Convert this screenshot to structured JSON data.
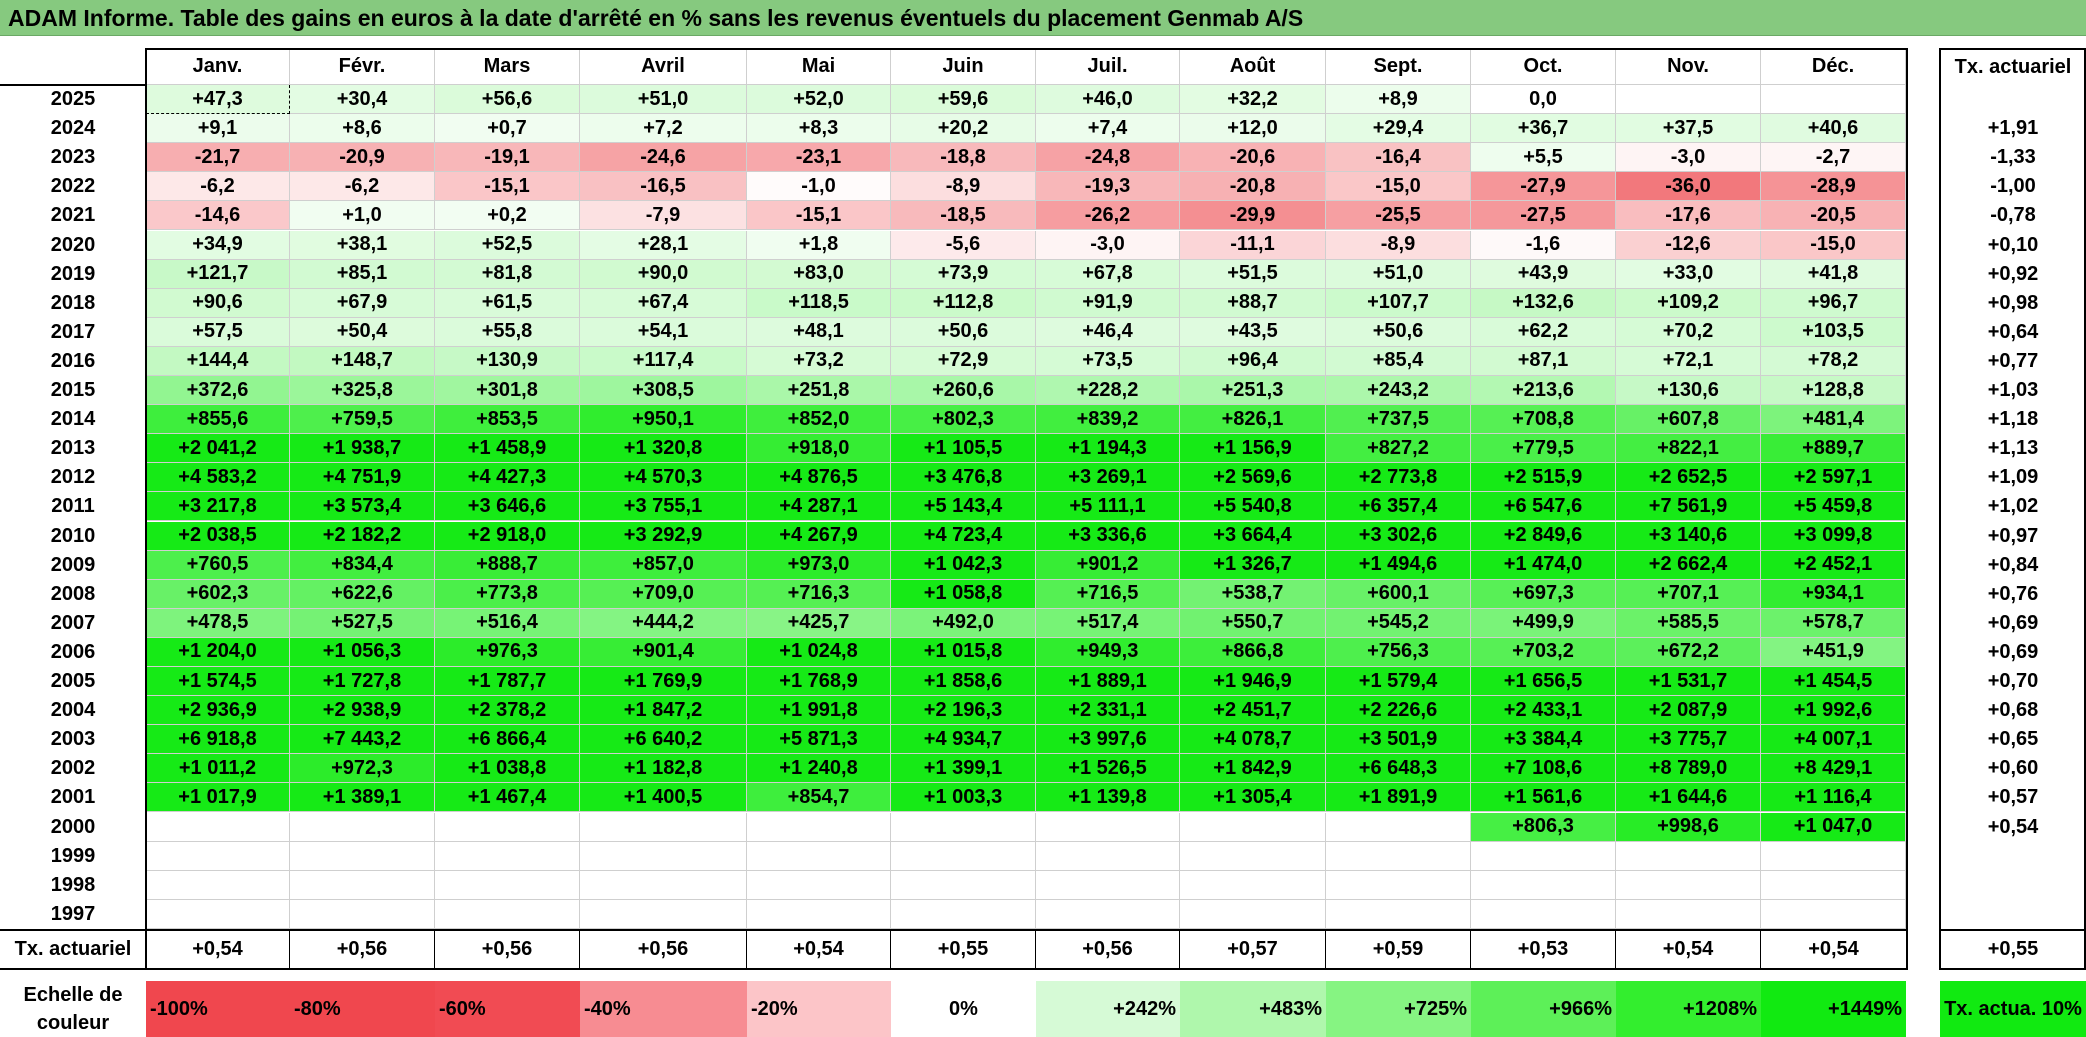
{
  "title": "ADAM Informe. Table des gains en euros à la date d'arrêté en % sans les revenus éventuels du placement Genmab A/S",
  "months": [
    "Janv.",
    "Févr.",
    "Mars",
    "Avril",
    "Mai",
    "Juin",
    "Juil.",
    "Août",
    "Sept.",
    "Oct.",
    "Nov.",
    "Déc."
  ],
  "rate_header": "Tx. actuariel",
  "rows": [
    {
      "year": "2025",
      "values": [
        "+47,3",
        "+30,4",
        "+56,6",
        "+51,0",
        "+52,0",
        "+59,6",
        "+46,0",
        "+32,2",
        "+8,9",
        "0,0",
        "",
        ""
      ],
      "rate": ""
    },
    {
      "year": "2024",
      "values": [
        "+9,1",
        "+8,6",
        "+0,7",
        "+7,2",
        "+8,3",
        "+20,2",
        "+7,4",
        "+12,0",
        "+29,4",
        "+36,7",
        "+37,5",
        "+40,6"
      ],
      "rate": "+1,91"
    },
    {
      "year": "2023",
      "values": [
        "-21,7",
        "-20,9",
        "-19,1",
        "-24,6",
        "-23,1",
        "-18,8",
        "-24,8",
        "-20,6",
        "-16,4",
        "+5,5",
        "-3,0",
        "-2,7"
      ],
      "rate": "-1,33"
    },
    {
      "year": "2022",
      "values": [
        "-6,2",
        "-6,2",
        "-15,1",
        "-16,5",
        "-1,0",
        "-8,9",
        "-19,3",
        "-20,8",
        "-15,0",
        "-27,9",
        "-36,0",
        "-28,9"
      ],
      "rate": "-1,00"
    },
    {
      "year": "2021",
      "values": [
        "-14,6",
        "+1,0",
        "+0,2",
        "-7,9",
        "-15,1",
        "-18,5",
        "-26,2",
        "-29,9",
        "-25,5",
        "-27,5",
        "-17,6",
        "-20,5"
      ],
      "rate": "-0,78"
    },
    {
      "year": "2020",
      "values": [
        "+34,9",
        "+38,1",
        "+52,5",
        "+28,1",
        "+1,8",
        "-5,6",
        "-3,0",
        "-11,1",
        "-8,9",
        "-1,6",
        "-12,6",
        "-15,0"
      ],
      "rate": "+0,10"
    },
    {
      "year": "2019",
      "values": [
        "+121,7",
        "+85,1",
        "+81,8",
        "+90,0",
        "+83,0",
        "+73,9",
        "+67,8",
        "+51,5",
        "+51,0",
        "+43,9",
        "+33,0",
        "+41,8"
      ],
      "rate": "+0,92"
    },
    {
      "year": "2018",
      "values": [
        "+90,6",
        "+67,9",
        "+61,5",
        "+67,4",
        "+118,5",
        "+112,8",
        "+91,9",
        "+88,7",
        "+107,7",
        "+132,6",
        "+109,2",
        "+96,7"
      ],
      "rate": "+0,98"
    },
    {
      "year": "2017",
      "values": [
        "+57,5",
        "+50,4",
        "+55,8",
        "+54,1",
        "+48,1",
        "+50,6",
        "+46,4",
        "+43,5",
        "+50,6",
        "+62,2",
        "+70,2",
        "+103,5"
      ],
      "rate": "+0,64"
    },
    {
      "year": "2016",
      "values": [
        "+144,4",
        "+148,7",
        "+130,9",
        "+117,4",
        "+73,2",
        "+72,9",
        "+73,5",
        "+96,4",
        "+85,4",
        "+87,1",
        "+72,1",
        "+78,2"
      ],
      "rate": "+0,77"
    },
    {
      "year": "2015",
      "values": [
        "+372,6",
        "+325,8",
        "+301,8",
        "+308,5",
        "+251,8",
        "+260,6",
        "+228,2",
        "+251,3",
        "+243,2",
        "+213,6",
        "+130,6",
        "+128,8"
      ],
      "rate": "+1,03"
    },
    {
      "year": "2014",
      "values": [
        "+855,6",
        "+759,5",
        "+853,5",
        "+950,1",
        "+852,0",
        "+802,3",
        "+839,2",
        "+826,1",
        "+737,5",
        "+708,8",
        "+607,8",
        "+481,4"
      ],
      "rate": "+1,18"
    },
    {
      "year": "2013",
      "values": [
        "+2 041,2",
        "+1 938,7",
        "+1 458,9",
        "+1 320,8",
        "+918,0",
        "+1 105,5",
        "+1 194,3",
        "+1 156,9",
        "+827,2",
        "+779,5",
        "+822,1",
        "+889,7"
      ],
      "rate": "+1,13"
    },
    {
      "year": "2012",
      "values": [
        "+4 583,2",
        "+4 751,9",
        "+4 427,3",
        "+4 570,3",
        "+4 876,5",
        "+3 476,8",
        "+3 269,1",
        "+2 569,6",
        "+2 773,8",
        "+2 515,9",
        "+2 652,5",
        "+2 597,1"
      ],
      "rate": "+1,09"
    },
    {
      "year": "2011",
      "values": [
        "+3 217,8",
        "+3 573,4",
        "+3 646,6",
        "+3 755,1",
        "+4 287,1",
        "+5 143,4",
        "+5 111,1",
        "+5 540,8",
        "+6 357,4",
        "+6 547,6",
        "+7 561,9",
        "+5 459,8"
      ],
      "rate": "+1,02"
    },
    {
      "year": "2010",
      "values": [
        "+2 038,5",
        "+2 182,2",
        "+2 918,0",
        "+3 292,9",
        "+4 267,9",
        "+4 723,4",
        "+3 336,6",
        "+3 664,4",
        "+3 302,6",
        "+2 849,6",
        "+3 140,6",
        "+3 099,8"
      ],
      "rate": "+0,97"
    },
    {
      "year": "2009",
      "values": [
        "+760,5",
        "+834,4",
        "+888,7",
        "+857,0",
        "+973,0",
        "+1 042,3",
        "+901,2",
        "+1 326,7",
        "+1 494,6",
        "+1 474,0",
        "+2 662,4",
        "+2 452,1"
      ],
      "rate": "+0,84"
    },
    {
      "year": "2008",
      "values": [
        "+602,3",
        "+622,6",
        "+773,8",
        "+709,0",
        "+716,3",
        "+1 058,8",
        "+716,5",
        "+538,7",
        "+600,1",
        "+697,3",
        "+707,1",
        "+934,1"
      ],
      "rate": "+0,76"
    },
    {
      "year": "2007",
      "values": [
        "+478,5",
        "+527,5",
        "+516,4",
        "+444,2",
        "+425,7",
        "+492,0",
        "+517,4",
        "+550,7",
        "+545,2",
        "+499,9",
        "+585,5",
        "+578,7"
      ],
      "rate": "+0,69"
    },
    {
      "year": "2006",
      "values": [
        "+1 204,0",
        "+1 056,3",
        "+976,3",
        "+901,4",
        "+1 024,8",
        "+1 015,8",
        "+949,3",
        "+866,8",
        "+756,3",
        "+703,2",
        "+672,2",
        "+451,9"
      ],
      "rate": "+0,69"
    },
    {
      "year": "2005",
      "values": [
        "+1 574,5",
        "+1 727,8",
        "+1 787,7",
        "+1 769,9",
        "+1 768,9",
        "+1 858,6",
        "+1 889,1",
        "+1 946,9",
        "+1 579,4",
        "+1 656,5",
        "+1 531,7",
        "+1 454,5"
      ],
      "rate": "+0,70"
    },
    {
      "year": "2004",
      "values": [
        "+2 936,9",
        "+2 938,9",
        "+2 378,2",
        "+1 847,2",
        "+1 991,8",
        "+2 196,3",
        "+2 331,1",
        "+2 451,7",
        "+2 226,6",
        "+2 433,1",
        "+2 087,9",
        "+1 992,6"
      ],
      "rate": "+0,68"
    },
    {
      "year": "2003",
      "values": [
        "+6 918,8",
        "+7 443,2",
        "+6 866,4",
        "+6 640,2",
        "+5 871,3",
        "+4 934,7",
        "+3 997,6",
        "+4 078,7",
        "+3 501,9",
        "+3 384,4",
        "+3 775,7",
        "+4 007,1"
      ],
      "rate": "+0,65"
    },
    {
      "year": "2002",
      "values": [
        "+1 011,2",
        "+972,3",
        "+1 038,8",
        "+1 182,8",
        "+1 240,8",
        "+1 399,1",
        "+1 526,5",
        "+1 842,9",
        "+6 648,3",
        "+7 108,6",
        "+8 789,0",
        "+8 429,1"
      ],
      "rate": "+0,60"
    },
    {
      "year": "2001",
      "values": [
        "+1 017,9",
        "+1 389,1",
        "+1 467,4",
        "+1 400,5",
        "+854,7",
        "+1 003,3",
        "+1 139,8",
        "+1 305,4",
        "+1 891,9",
        "+1 561,6",
        "+1 644,6",
        "+1 116,4"
      ],
      "rate": "+0,57"
    },
    {
      "year": "2000",
      "values": [
        "",
        "",
        "",
        "",
        "",
        "",
        "",
        "",
        "",
        "+806,3",
        "+998,6",
        "+1 047,0"
      ],
      "rate": "+0,54"
    },
    {
      "year": "1999",
      "values": [
        "",
        "",
        "",
        "",
        "",
        "",
        "",
        "",
        "",
        "",
        "",
        ""
      ],
      "rate": ""
    },
    {
      "year": "1998",
      "values": [
        "",
        "",
        "",
        "",
        "",
        "",
        "",
        "",
        "",
        "",
        "",
        ""
      ],
      "rate": ""
    },
    {
      "year": "1997",
      "values": [
        "",
        "",
        "",
        "",
        "",
        "",
        "",
        "",
        "",
        "",
        "",
        ""
      ],
      "rate": ""
    }
  ],
  "summary": {
    "label": "Tx. actuariel",
    "values": [
      "+0,54",
      "+0,56",
      "+0,56",
      "+0,56",
      "+0,54",
      "+0,55",
      "+0,56",
      "+0,57",
      "+0,59",
      "+0,53",
      "+0,54",
      "+0,54"
    ],
    "total": "+0,55"
  },
  "scale": {
    "label": "Echelle de couleur",
    "items": [
      {
        "text": "-100%",
        "color": "#f0474e"
      },
      {
        "text": "-80%",
        "color": "#f0474e"
      },
      {
        "text": "-60%",
        "color": "#f14b53"
      },
      {
        "text": "-40%",
        "color": "#f78c92"
      },
      {
        "text": "-20%",
        "color": "#fcc5c8"
      },
      {
        "text": "0%",
        "color": "#ffffff"
      },
      {
        "text": "+242%",
        "color": "#d6fad6"
      },
      {
        "text": "+483%",
        "color": "#aff7ac"
      },
      {
        "text": "+725%",
        "color": "#86f482"
      },
      {
        "text": "+966%",
        "color": "#5df058"
      },
      {
        "text": "+1208%",
        "color": "#33ee2e"
      },
      {
        "text": "+1449%",
        "color": "#11ea11"
      }
    ],
    "rate_label": "Tx. actua. 10%",
    "rate_color": "#11ea11"
  }
}
